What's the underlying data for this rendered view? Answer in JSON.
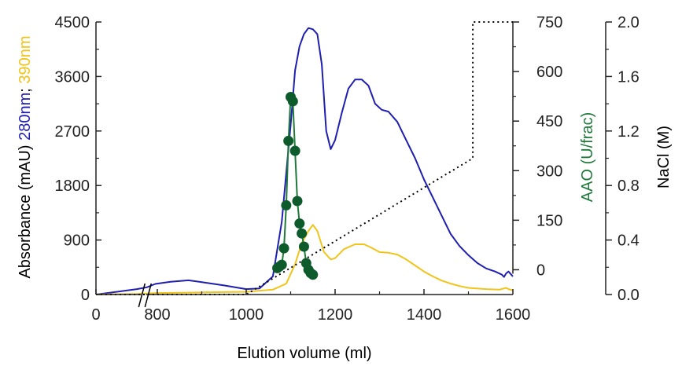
{
  "chart_data": {
    "type": "line",
    "xlabel": "Elution volume (ml)",
    "ylabel_left": {
      "parts": [
        {
          "text": "Absorbance (mAU) ",
          "color": "#000000"
        },
        {
          "text": "280nm",
          "color": "#1f1fb0"
        },
        {
          "text": "; ",
          "color": "#000000"
        },
        {
          "text": "390nm",
          "color": "#f0c419"
        }
      ]
    },
    "ylabel_right1": "AAO (U/frac)",
    "ylabel_right2": "NaCl (M)",
    "x_axis": {
      "ticks": [
        {
          "label": "0",
          "pos": 0
        },
        {
          "label": "800",
          "pos": 800
        },
        {
          "label": "1000",
          "pos": 1000
        },
        {
          "label": "1200",
          "pos": 1200
        },
        {
          "label": "1400",
          "pos": 1400
        },
        {
          "label": "1600",
          "pos": 1600
        }
      ],
      "break": "axis break between 0 and 800 ml"
    },
    "y_left": {
      "ylim": [
        0,
        4500
      ],
      "ticks": [
        "0",
        "900",
        "1800",
        "2700",
        "3600",
        "4500"
      ]
    },
    "y_right1": {
      "ylim": [
        -75,
        750
      ],
      "ticks": [
        "0",
        "150",
        "300",
        "450",
        "600",
        "750"
      ]
    },
    "y_right2": {
      "ylim": [
        0,
        2.0
      ],
      "ticks": [
        "0.0",
        "0.4",
        "0.8",
        "1.2",
        "1.6",
        "2.0"
      ]
    },
    "colors": {
      "a280": "#1f1fb0",
      "a390": "#f0c419",
      "aao": "#1f7a3a",
      "aao_marker": "#0d5a2a",
      "nacl": "#000000",
      "axis": "#222222"
    },
    "series": [
      {
        "id": "a280",
        "axis": "left",
        "style": "solid",
        "points": [
          [
            0,
            0
          ],
          [
            700,
            90
          ],
          [
            750,
            120
          ],
          [
            790,
            175
          ],
          [
            830,
            210
          ],
          [
            870,
            235
          ],
          [
            880,
            225
          ],
          [
            900,
            205
          ],
          [
            950,
            150
          ],
          [
            1000,
            90
          ],
          [
            1030,
            100
          ],
          [
            1060,
            300
          ],
          [
            1080,
            1200
          ],
          [
            1100,
            2800
          ],
          [
            1110,
            3700
          ],
          [
            1120,
            4100
          ],
          [
            1130,
            4300
          ],
          [
            1140,
            4400
          ],
          [
            1150,
            4380
          ],
          [
            1160,
            4300
          ],
          [
            1170,
            3800
          ],
          [
            1180,
            2700
          ],
          [
            1190,
            2400
          ],
          [
            1200,
            2550
          ],
          [
            1215,
            3000
          ],
          [
            1230,
            3400
          ],
          [
            1245,
            3550
          ],
          [
            1260,
            3550
          ],
          [
            1275,
            3450
          ],
          [
            1290,
            3150
          ],
          [
            1305,
            3050
          ],
          [
            1320,
            3020
          ],
          [
            1340,
            2850
          ],
          [
            1360,
            2550
          ],
          [
            1380,
            2250
          ],
          [
            1400,
            1900
          ],
          [
            1420,
            1600
          ],
          [
            1440,
            1300
          ],
          [
            1460,
            1000
          ],
          [
            1480,
            800
          ],
          [
            1500,
            650
          ],
          [
            1520,
            520
          ],
          [
            1540,
            430
          ],
          [
            1560,
            380
          ],
          [
            1575,
            330
          ],
          [
            1580,
            290
          ],
          [
            1585,
            350
          ],
          [
            1590,
            380
          ],
          [
            1595,
            340
          ],
          [
            1600,
            300
          ]
        ]
      },
      {
        "id": "a390",
        "axis": "left",
        "style": "solid",
        "points": [
          [
            0,
            0
          ],
          [
            700,
            10
          ],
          [
            800,
            25
          ],
          [
            900,
            35
          ],
          [
            1000,
            45
          ],
          [
            1060,
            80
          ],
          [
            1090,
            180
          ],
          [
            1110,
            500
          ],
          [
            1125,
            850
          ],
          [
            1140,
            1050
          ],
          [
            1150,
            1150
          ],
          [
            1160,
            1050
          ],
          [
            1175,
            700
          ],
          [
            1190,
            580
          ],
          [
            1200,
            600
          ],
          [
            1220,
            750
          ],
          [
            1245,
            830
          ],
          [
            1265,
            830
          ],
          [
            1280,
            780
          ],
          [
            1300,
            700
          ],
          [
            1320,
            690
          ],
          [
            1340,
            660
          ],
          [
            1360,
            580
          ],
          [
            1380,
            480
          ],
          [
            1400,
            380
          ],
          [
            1420,
            300
          ],
          [
            1440,
            230
          ],
          [
            1460,
            180
          ],
          [
            1480,
            140
          ],
          [
            1500,
            110
          ],
          [
            1540,
            90
          ],
          [
            1570,
            80
          ],
          [
            1585,
            110
          ],
          [
            1590,
            90
          ],
          [
            1600,
            70
          ]
        ]
      },
      {
        "id": "nacl",
        "axis": "right2",
        "style": "dotted",
        "points": [
          [
            0,
            0
          ],
          [
            1000,
            0
          ],
          [
            1510,
            1.0
          ],
          [
            1510,
            2.0
          ],
          [
            1600,
            2.0
          ]
        ]
      },
      {
        "id": "aao",
        "axis": "right1",
        "style": "line+markers",
        "points": [
          [
            1070,
            5
          ],
          [
            1075,
            10
          ],
          [
            1080,
            15
          ],
          [
            1085,
            65
          ],
          [
            1090,
            195
          ],
          [
            1095,
            390
          ],
          [
            1100,
            523
          ],
          [
            1105,
            510
          ],
          [
            1110,
            360
          ],
          [
            1115,
            208
          ],
          [
            1120,
            140
          ],
          [
            1125,
            110
          ],
          [
            1130,
            70
          ],
          [
            1135,
            20
          ],
          [
            1140,
            0
          ],
          [
            1145,
            -10
          ],
          [
            1150,
            -15
          ]
        ]
      }
    ]
  }
}
